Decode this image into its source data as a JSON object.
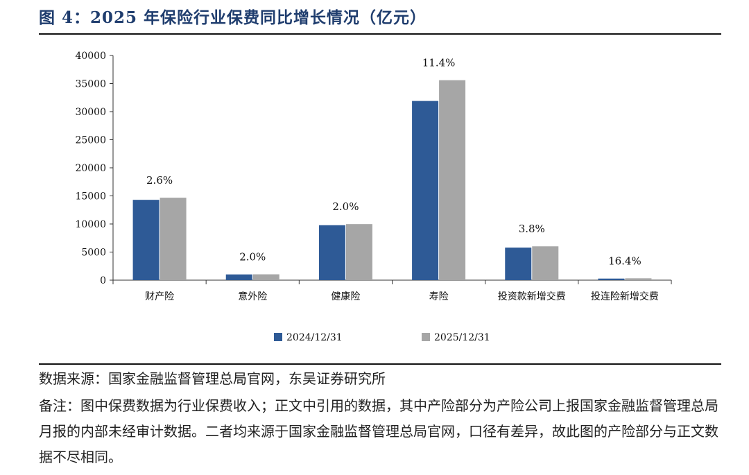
{
  "figure": {
    "title": "图 4：2025 年保险行业保费同比增长情况（亿元）",
    "source": "数据来源：国家金融监督管理总局官网，东吴证券研究所",
    "note": "备注：图中保费数据为行业保费收入；正文中引用的数据，其中产险部分为产险公司上报国家金融监督管理总局月报的内部未经审计数据。二者均来源于国家金融监督管理总局官网，口径有差异，故此图的产险部分与正文数据不尽相同。"
  },
  "chart_data": {
    "type": "bar",
    "title": "",
    "xlabel": "",
    "ylabel": "",
    "categories": [
      "财产险",
      "意外险",
      "健康险",
      "寿险",
      "投资款新增交费",
      "投连险新增交费"
    ],
    "series": [
      {
        "name": "2024/12/31",
        "color": "#2e5a96",
        "values": [
          14300,
          1020,
          9780,
          31900,
          5800,
          280
        ]
      },
      {
        "name": "2025/12/31",
        "color": "#a6a6a6",
        "values": [
          14680,
          1040,
          9980,
          35600,
          6020,
          330
        ]
      }
    ],
    "growth_labels": [
      "2.6%",
      "2.0%",
      "2.0%",
      "11.4%",
      "3.8%",
      "16.4%"
    ],
    "ylim": [
      0,
      40000
    ],
    "yticks": [
      0,
      5000,
      10000,
      15000,
      20000,
      25000,
      30000,
      35000,
      40000
    ],
    "grid": false,
    "legend_position": "bottom-center"
  }
}
